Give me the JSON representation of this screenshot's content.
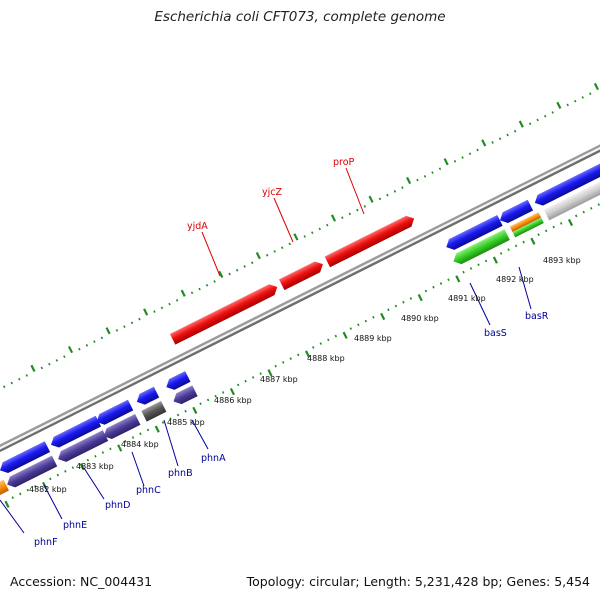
{
  "title": "Escherichia coli CFT073, complete genome",
  "footer": {
    "accession": "Accession: NC_004431",
    "info": "Topology: circular; Length: 5,231,428 bp; Genes: 5,454"
  },
  "colors": {
    "background": "#ffffff",
    "backbone": "#888888",
    "tick_marks": "#228B22",
    "kbp_label": "#111111",
    "gene_label_forward": "#dd0000",
    "gene_label_reverse": "#000099",
    "forward_gene": "#ee1111",
    "reverse_gene": "#1a1aee",
    "reverse_cds": "#4a3c98",
    "gray_feature": "#555555",
    "green_feature": "#33cc22",
    "orange_feature": "#ff8c00",
    "light_gray_feature": "#cccccc"
  },
  "scale_labels": [
    "4882 kbp",
    "4883 kbp",
    "4884 kbp",
    "4885 kbp",
    "4886 kbp",
    "4887 kbp",
    "4888 kbp",
    "4889 kbp",
    "4890 kbp",
    "4891 kbp",
    "4892 kbp",
    "4893 kbp"
  ],
  "forward_gene_labels": [
    "yjdA",
    "yjcZ",
    "proP"
  ],
  "reverse_gene_labels": [
    "phnF",
    "phnE",
    "phnD",
    "phnC",
    "phnB",
    "phnA",
    "basS",
    "basR"
  ]
}
